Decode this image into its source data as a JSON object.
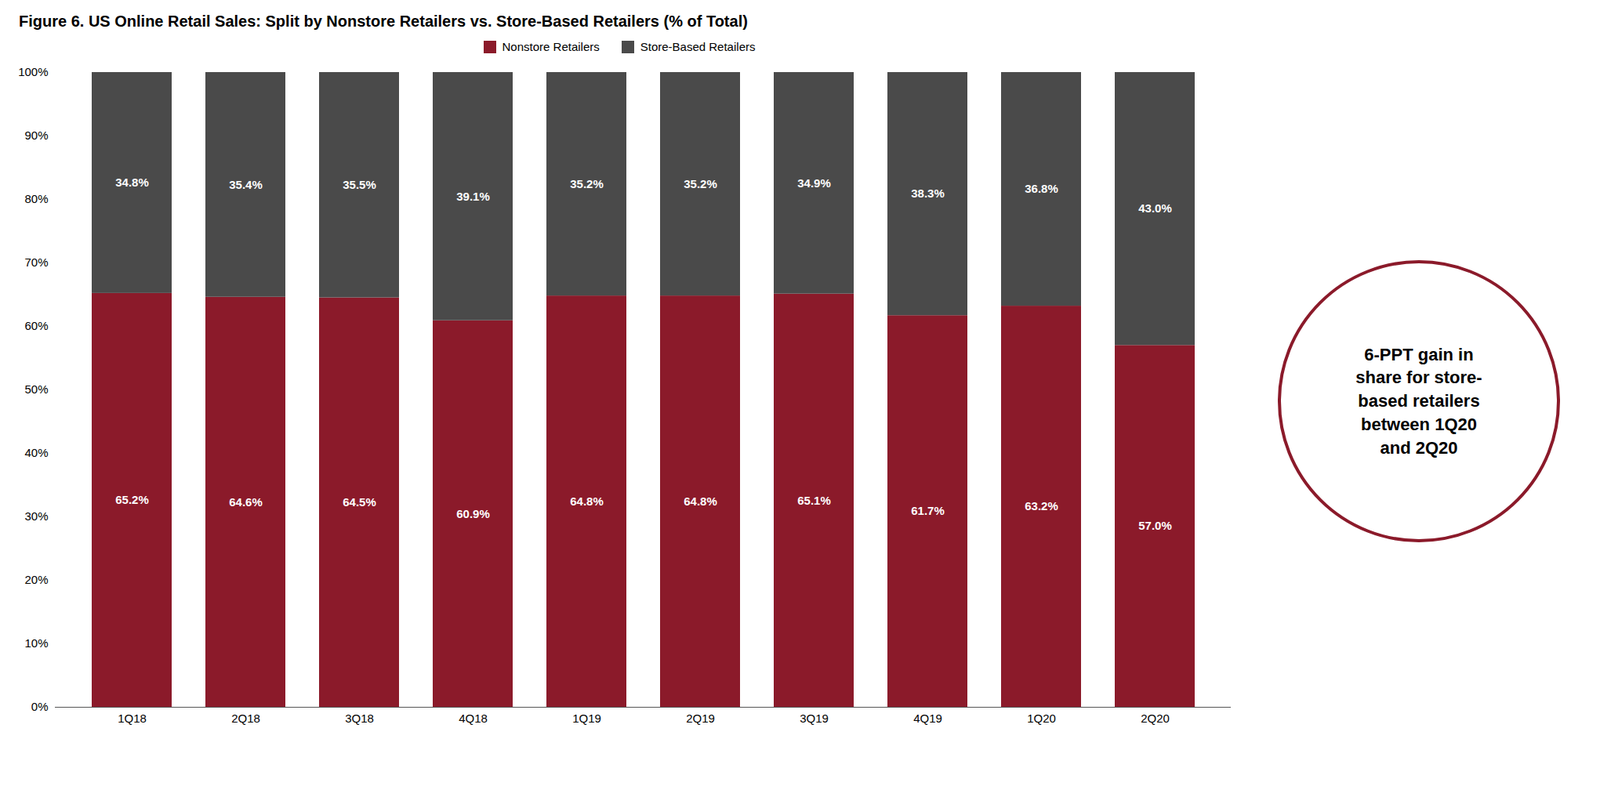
{
  "chart_data": {
    "type": "bar",
    "stacked": true,
    "title": "Figure 6. US Online Retail Sales: Split by Nonstore Retailers vs. Store-Based Retailers (% of Total)",
    "categories": [
      "1Q18",
      "2Q18",
      "3Q18",
      "4Q18",
      "1Q19",
      "2Q19",
      "3Q19",
      "4Q19",
      "1Q20",
      "2Q20"
    ],
    "series": [
      {
        "name": "Nonstore Retailers",
        "color": "#8B1A2A",
        "values": [
          65.2,
          64.6,
          64.5,
          60.9,
          64.8,
          64.8,
          65.1,
          61.7,
          63.2,
          57.0
        ],
        "value_labels": [
          "65.2%",
          "64.6%",
          "64.5%",
          "60.9%",
          "64.8%",
          "64.8%",
          "65.1%",
          "61.7%",
          "63.2%",
          "57.0%"
        ]
      },
      {
        "name": "Store-Based Retailers",
        "color": "#4A4A4A",
        "values": [
          34.8,
          35.4,
          35.5,
          39.1,
          35.2,
          35.2,
          34.9,
          38.3,
          36.8,
          43.0
        ],
        "value_labels": [
          "34.8%",
          "35.4%",
          "35.5%",
          "39.1%",
          "35.2%",
          "35.2%",
          "34.9%",
          "38.3%",
          "36.8%",
          "43.0%"
        ]
      }
    ],
    "ylim": [
      0,
      100
    ],
    "yticks": [
      {
        "value": 0,
        "label": "0%"
      },
      {
        "value": 10,
        "label": "10%"
      },
      {
        "value": 20,
        "label": "20%"
      },
      {
        "value": 30,
        "label": "30%"
      },
      {
        "value": 40,
        "label": "40%"
      },
      {
        "value": 50,
        "label": "50%"
      },
      {
        "value": 60,
        "label": "60%"
      },
      {
        "value": 70,
        "label": "70%"
      },
      {
        "value": 80,
        "label": "80%"
      },
      {
        "value": 90,
        "label": "90%"
      },
      {
        "value": 100,
        "label": "100%"
      }
    ],
    "grid": false,
    "legend": "top",
    "data_labels": true,
    "annotations": [
      {
        "text": "6-PPT gain in\nshare for store-\nbased retailers\nbetween 1Q20\nand 2Q20",
        "color": "#8B1A2A"
      }
    ]
  }
}
